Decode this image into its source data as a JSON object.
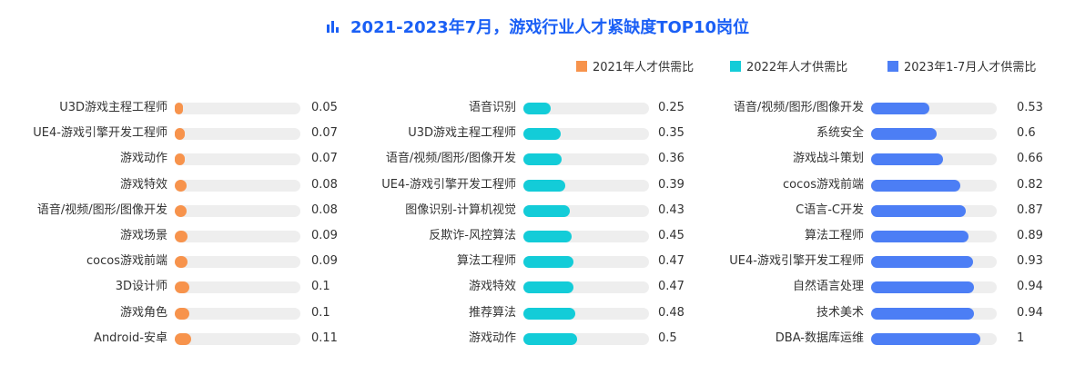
{
  "title": "2021-2023年7月，游戏行业人才紧缺度TOP10岗位",
  "chart_data": {
    "type": "bar",
    "orientation": "horizontal",
    "title": "2021-2023年7月，游戏行业人才紧缺度TOP10岗位",
    "xlim": [
      0,
      1
    ],
    "grid": false,
    "legend": {
      "position": "top-right",
      "items": [
        "2021年人才供需比",
        "2022年人才供需比",
        "2023年1-7月人才供需比"
      ]
    },
    "panels": [
      {
        "name": "2021年人才供需比",
        "color": "#f7934c",
        "categories": [
          "U3D游戏主程工程师",
          "UE4-游戏引擎开发工程师",
          "游戏动作",
          "游戏特效",
          "语音/视频/图形/图像开发",
          "游戏场景",
          "cocos游戏前端",
          "3D设计师",
          "游戏角色",
          "Android-安卓"
        ],
        "values": [
          0.05,
          0.07,
          0.07,
          0.08,
          0.08,
          0.09,
          0.09,
          0.1,
          0.1,
          0.11
        ],
        "value_labels": [
          "0.05",
          "0.07",
          "0.07",
          "0.08",
          "0.08",
          "0.09",
          "0.09",
          "0.1",
          "0.1",
          "0.11"
        ]
      },
      {
        "name": "2022年人才供需比",
        "color": "#13ccd8",
        "categories": [
          "语音识别",
          "U3D游戏主程工程师",
          "语音/视频/图形/图像开发",
          "UE4-游戏引擎开发工程师",
          "图像识别-计算机视觉",
          "反欺诈-风控算法",
          "算法工程师",
          "游戏特效",
          "推荐算法",
          "游戏动作"
        ],
        "values": [
          0.25,
          0.35,
          0.36,
          0.39,
          0.43,
          0.45,
          0.47,
          0.47,
          0.48,
          0.5
        ],
        "value_labels": [
          "0.25",
          "0.35",
          "0.36",
          "0.39",
          "0.43",
          "0.45",
          "0.47",
          "0.47",
          "0.48",
          "0.5"
        ]
      },
      {
        "name": "2023年1-7月人才供需比",
        "color": "#4c7ef5",
        "categories": [
          "语音/视频/图形/图像开发",
          "系统安全",
          "游戏战斗策划",
          "cocos游戏前端",
          "C语言-C开发",
          "算法工程师",
          "UE4-游戏引擎开发工程师",
          "自然语言处理",
          "技术美术",
          "DBA-数据库运维"
        ],
        "values": [
          0.53,
          0.6,
          0.66,
          0.82,
          0.87,
          0.89,
          0.93,
          0.94,
          0.94,
          1
        ],
        "value_labels": [
          "0.53",
          "0.6",
          "0.66",
          "0.82",
          "0.87",
          "0.89",
          "0.93",
          "0.94",
          "0.94",
          "1"
        ]
      }
    ]
  }
}
